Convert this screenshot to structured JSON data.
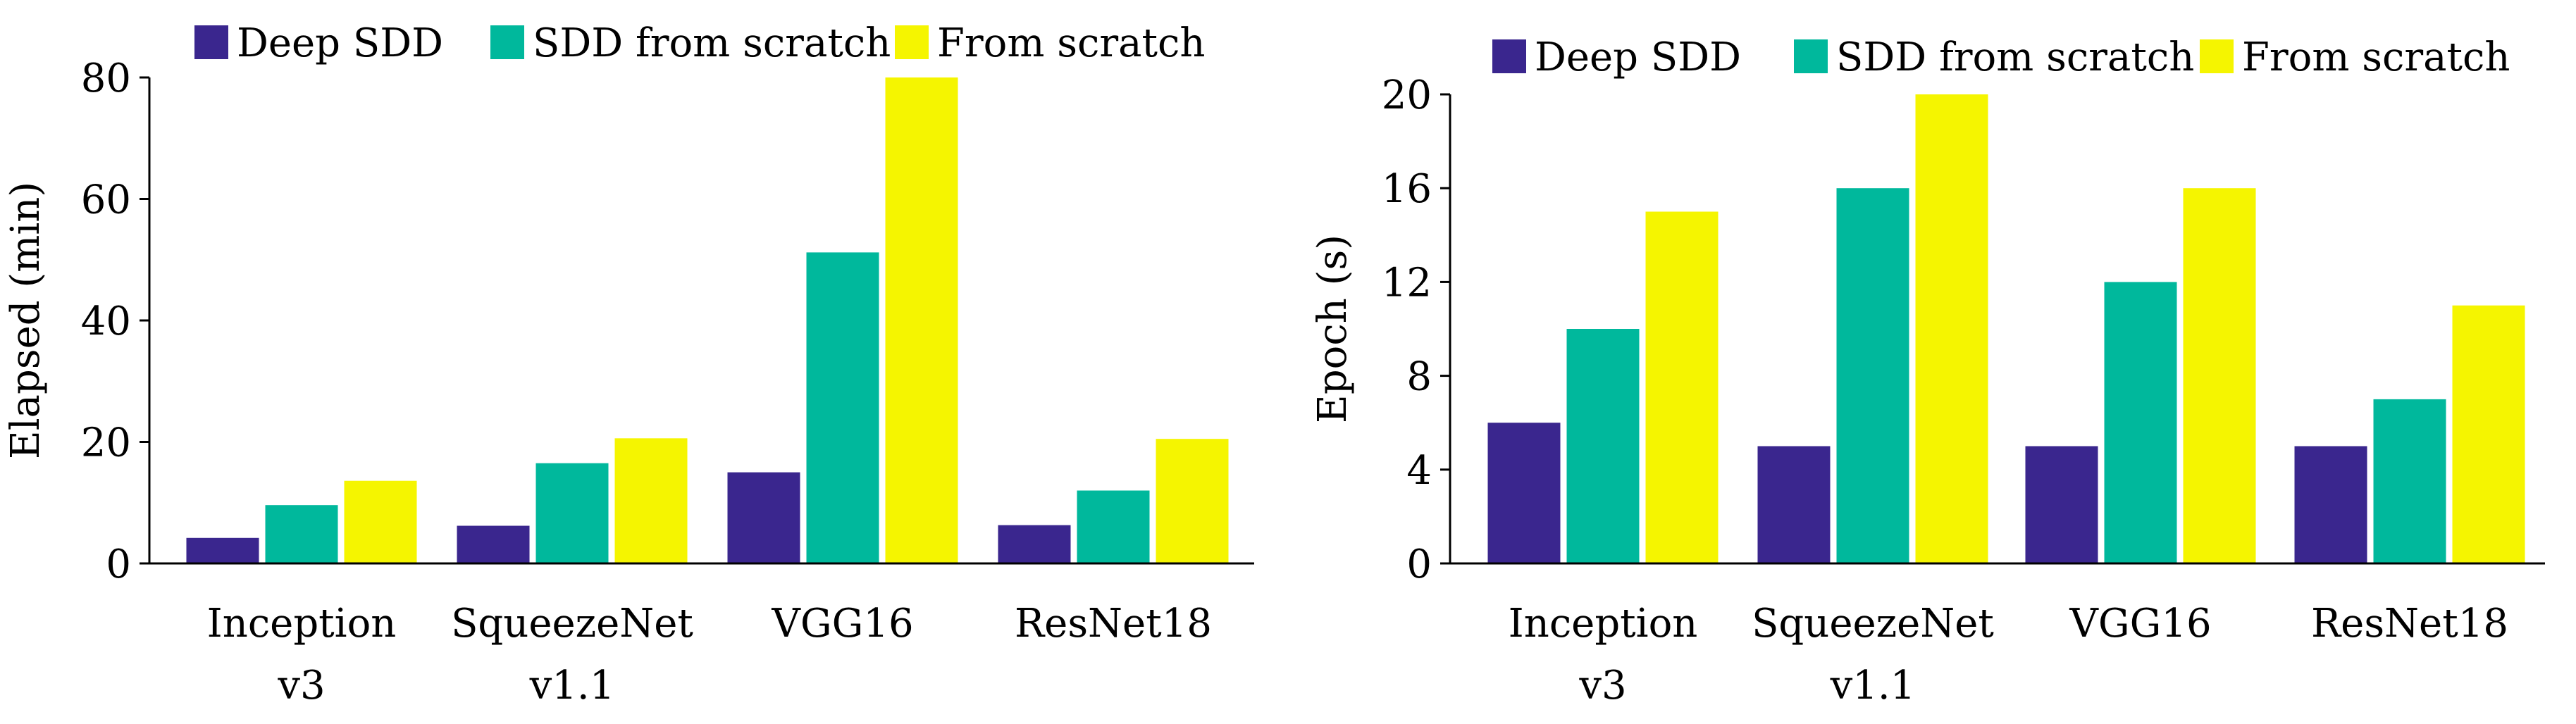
{
  "chart_data": [
    {
      "type": "bar",
      "title": "",
      "xlabel": "",
      "ylabel": "Elapsed (min)",
      "ylim": [
        0,
        80
      ],
      "yticks": [
        0,
        20,
        40,
        60,
        80
      ],
      "categories": [
        [
          "Inception",
          "v3"
        ],
        [
          "SqueezeNet",
          "v1.1"
        ],
        [
          "VGG16"
        ],
        [
          "ResNet18"
        ]
      ],
      "legend_position": "top",
      "series": [
        {
          "name": "Deep SDD",
          "color": "#3a268e",
          "values": [
            4.2,
            6.2,
            15,
            6.3
          ]
        },
        {
          "name": "SDD from scratch",
          "color": "#00b89c",
          "values": [
            9.6,
            16.5,
            51.2,
            12
          ]
        },
        {
          "name": "From scratch",
          "color": "#f5f500",
          "values": [
            13.6,
            20.6,
            80,
            20.5
          ]
        }
      ]
    },
    {
      "type": "bar",
      "title": "",
      "xlabel": "",
      "ylabel": "Epoch (s)",
      "ylim": [
        0,
        20
      ],
      "yticks": [
        0,
        4,
        8,
        12,
        16,
        20
      ],
      "categories": [
        [
          "Inception",
          "v3"
        ],
        [
          "SqueezeNet",
          "v1.1"
        ],
        [
          "VGG16"
        ],
        [
          "ResNet18"
        ]
      ],
      "legend_position": "top",
      "series": [
        {
          "name": "Deep SDD",
          "color": "#3a268e",
          "values": [
            6,
            5,
            5,
            5
          ]
        },
        {
          "name": "SDD from scratch",
          "color": "#00b89c",
          "values": [
            10,
            16,
            12,
            7
          ]
        },
        {
          "name": "From scratch",
          "color": "#f5f500",
          "values": [
            15,
            20,
            16,
            11
          ]
        }
      ]
    }
  ]
}
